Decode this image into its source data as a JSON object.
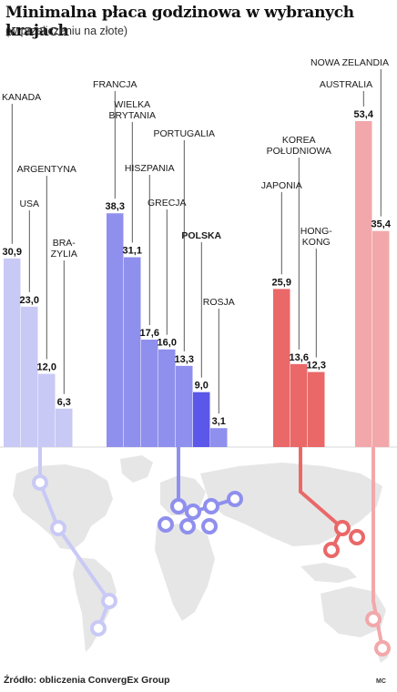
{
  "header": {
    "title": "Minimalna płaca godzinowa w wybranych krajach",
    "subtitle": "(w przeliczeniu na złote)"
  },
  "footer": {
    "source": "Źródło: obliczenia ConvergEx Group",
    "author": "MC"
  },
  "colors": {
    "americas": "#c9c9f6",
    "europe": "#8f8fee",
    "poland": "#5b57e8",
    "asia": "#ea6868",
    "oceania": "#f2a8ab",
    "map": "#e4e4e4"
  },
  "chart_data": {
    "type": "bar",
    "title": "Minimalna płaca godzinowa w wybranych krajach",
    "subtitle": "(w przeliczeniu na złote)",
    "ylim": [
      0,
      55
    ],
    "categories": [
      "KANADA",
      "USA",
      "ARGENTYNA",
      "BRAZYLIA",
      "FRANCJA",
      "WIELKA BRYTANIA",
      "HISZPANIA",
      "GRECJA",
      "PORTUGALIA",
      "POLSKA",
      "ROSJA",
      "JAPONIA",
      "KOREA POŁUDNIOWA",
      "HONGKONG",
      "AUSTRALIA",
      "NOWA ZELANDIA"
    ],
    "value_labels": [
      "30,9",
      "23,0",
      "12,0",
      "6,3",
      "38,3",
      "31,1",
      "17,6",
      "16,0",
      "13,3",
      "9,0",
      "3,1",
      "25,9",
      "13,6",
      "12,3",
      "53,4",
      "35,4"
    ],
    "groups": [
      {
        "region": "americas",
        "bars": [
          {
            "name": "KANADA",
            "label_lines": [
              "KANADA"
            ],
            "value": 30.9,
            "value_label": "30,9"
          },
          {
            "name": "USA",
            "label_lines": [
              "USA"
            ],
            "value": 23.0,
            "value_label": "23,0"
          },
          {
            "name": "ARGENTYNA",
            "label_lines": [
              "ARGENTYNA"
            ],
            "value": 12.0,
            "value_label": "12,0"
          },
          {
            "name": "BRAZYLIA",
            "label_lines": [
              "BRA-",
              "ZYLIA"
            ],
            "value": 6.3,
            "value_label": "6,3"
          }
        ]
      },
      {
        "region": "europe",
        "bars": [
          {
            "name": "FRANCJA",
            "label_lines": [
              "FRANCJA"
            ],
            "value": 38.3,
            "value_label": "38,3"
          },
          {
            "name": "WIELKA BRYTANIA",
            "label_lines": [
              "WIELKA",
              "BRYTANIA"
            ],
            "value": 31.1,
            "value_label": "31,1"
          },
          {
            "name": "HISZPANIA",
            "label_lines": [
              "HISZPANIA"
            ],
            "value": 17.6,
            "value_label": "17,6"
          },
          {
            "name": "GRECJA",
            "label_lines": [
              "GRECJA"
            ],
            "value": 16.0,
            "value_label": "16,0"
          },
          {
            "name": "PORTUGALIA",
            "label_lines": [
              "PORTUGALIA"
            ],
            "value": 13.3,
            "value_label": "13,3"
          },
          {
            "name": "POLSKA",
            "label_lines": [
              "POLSKA"
            ],
            "value": 9.0,
            "value_label": "9,0",
            "highlight": true
          },
          {
            "name": "ROSJA",
            "label_lines": [
              "ROSJA"
            ],
            "value": 3.1,
            "value_label": "3,1"
          }
        ]
      },
      {
        "region": "asia",
        "bars": [
          {
            "name": "JAPONIA",
            "label_lines": [
              "JAPONIA"
            ],
            "value": 25.9,
            "value_label": "25,9"
          },
          {
            "name": "KOREA POŁUDNIOWA",
            "label_lines": [
              "KOREA",
              "POŁUDNIOWA"
            ],
            "value": 13.6,
            "value_label": "13,6"
          },
          {
            "name": "HONGKONG",
            "label_lines": [
              "HONG-",
              "KONG"
            ],
            "value": 12.3,
            "value_label": "12,3"
          }
        ]
      },
      {
        "region": "oceania",
        "bars": [
          {
            "name": "AUSTRALIA",
            "label_lines": [
              "AUSTRALIA"
            ],
            "value": 53.4,
            "value_label": "53,4"
          },
          {
            "name": "NOWA ZELANDIA",
            "label_lines": [
              "NOWA ZELANDIA"
            ],
            "value": 35.4,
            "value_label": "35,4"
          }
        ]
      }
    ]
  }
}
